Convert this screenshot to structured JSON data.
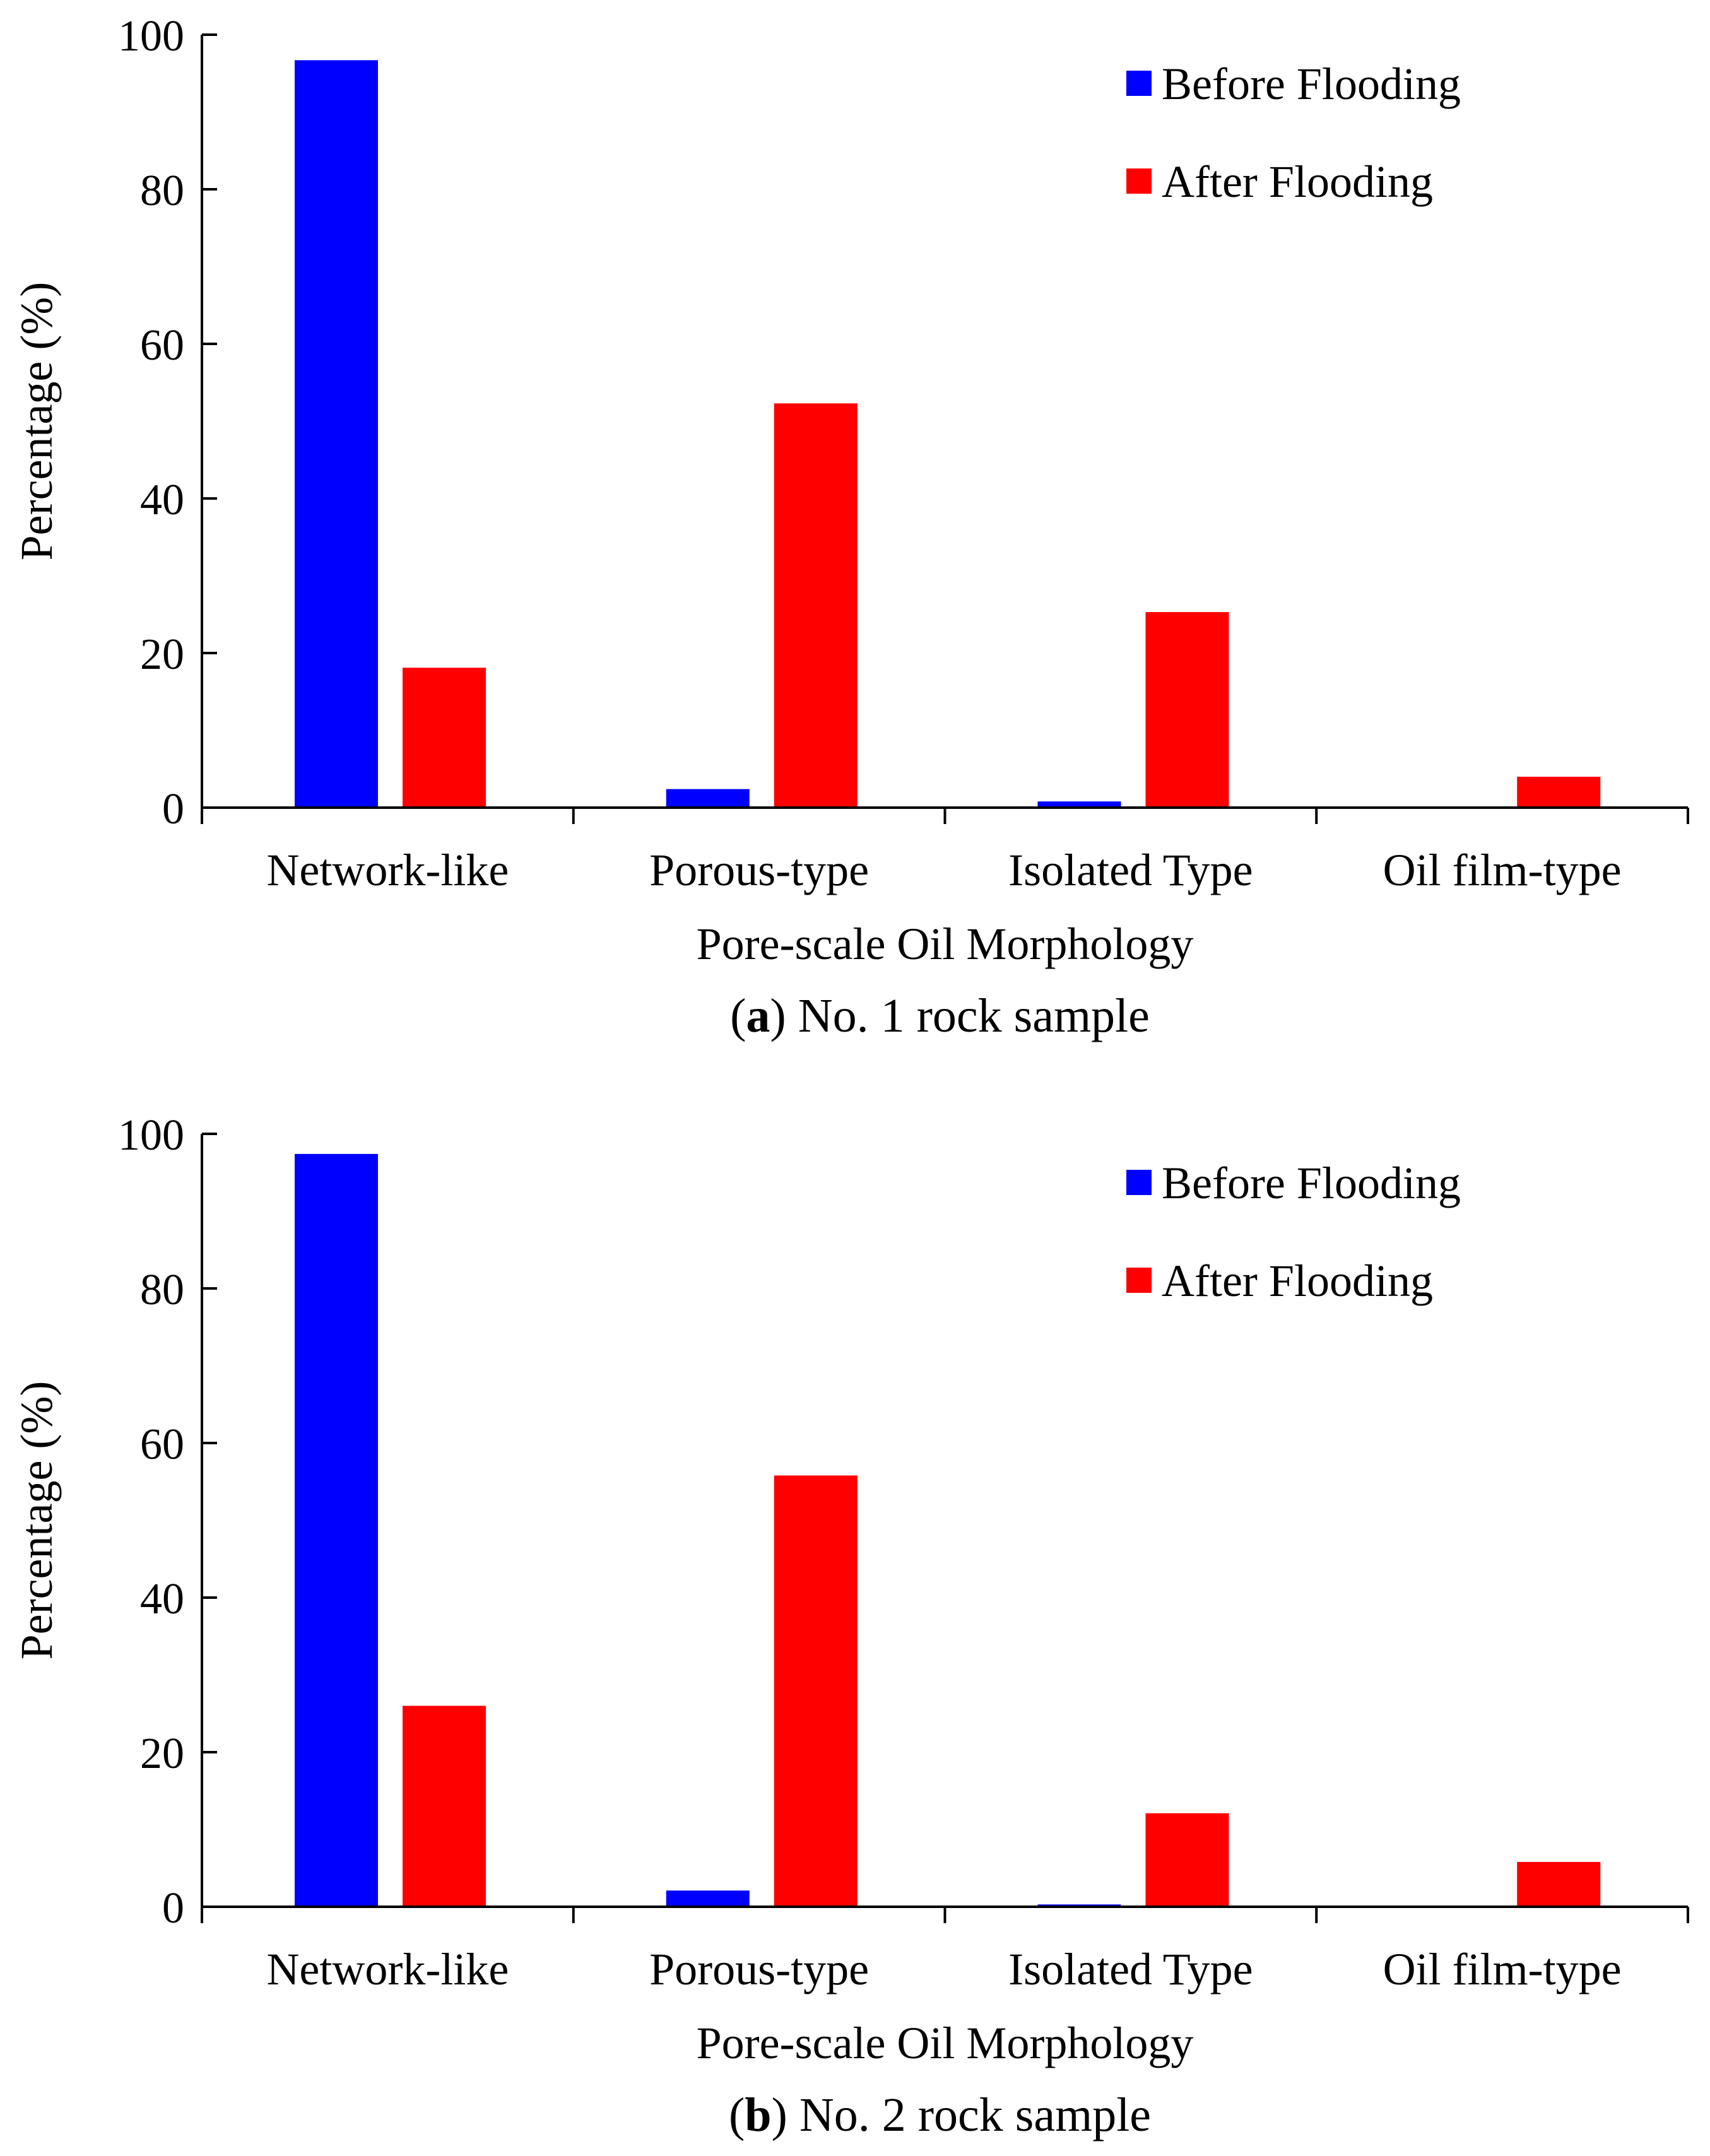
{
  "chart_data": [
    {
      "type": "bar",
      "panel_letter": "a",
      "caption_open": "(",
      "caption_close": ")",
      "caption_text": " No. 1 rock sample",
      "xlabel": "Pore-scale Oil Morphology",
      "ylabel": "Percentage (%)",
      "ylim": [
        0,
        100
      ],
      "yticks": [
        0,
        20,
        40,
        60,
        80,
        100
      ],
      "categories": [
        "Network-like",
        "Porous-type",
        "Isolated Type",
        "Oil film-type"
      ],
      "series": [
        {
          "name": "Before Flooding",
          "color": "#0000ff",
          "values": [
            96.7,
            2.4,
            0.8,
            0
          ]
        },
        {
          "name": "After Flooding",
          "color": "#ff0000",
          "values": [
            18.1,
            52.3,
            25.3,
            4.0
          ]
        }
      ],
      "legend_position": "top-right",
      "grid": false
    },
    {
      "type": "bar",
      "panel_letter": "b",
      "caption_open": "(",
      "caption_close": ")",
      "caption_text": " No. 2 rock sample",
      "xlabel": "Pore-scale Oil Morphology",
      "ylabel": "Percentage (%)",
      "ylim": [
        0,
        100
      ],
      "yticks": [
        0,
        20,
        40,
        60,
        80,
        100
      ],
      "categories": [
        "Network-like",
        "Porous-type",
        "Isolated Type",
        "Oil film-type"
      ],
      "series": [
        {
          "name": "Before Flooding",
          "color": "#0000ff",
          "values": [
            97.4,
            2.1,
            0.3,
            0
          ]
        },
        {
          "name": "After Flooding",
          "color": "#ff0000",
          "values": [
            26.0,
            55.8,
            12.1,
            5.8
          ]
        }
      ],
      "legend_position": "top-right",
      "grid": false
    }
  ]
}
